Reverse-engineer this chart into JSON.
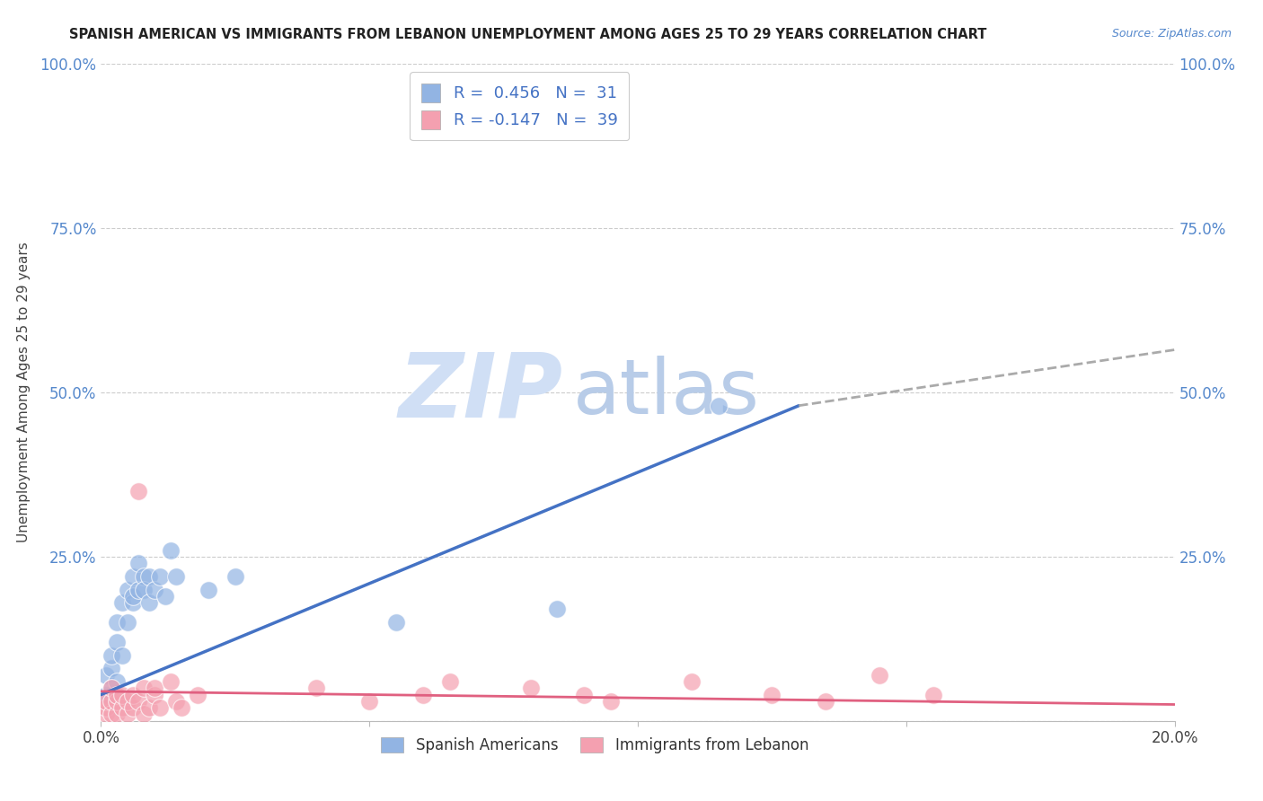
{
  "title": "SPANISH AMERICAN VS IMMIGRANTS FROM LEBANON UNEMPLOYMENT AMONG AGES 25 TO 29 YEARS CORRELATION CHART",
  "source": "Source: ZipAtlas.com",
  "ylabel": "Unemployment Among Ages 25 to 29 years",
  "xlim": [
    0.0,
    0.2
  ],
  "ylim": [
    0.0,
    1.0
  ],
  "spanish_color": "#92b4e3",
  "lebanon_color": "#f4a0b0",
  "blue_line_color": "#4472c4",
  "pink_line_color": "#e06080",
  "dashed_line_color": "#aaaaaa",
  "background_color": "#ffffff",
  "watermark_zip": "ZIP",
  "watermark_atlas": "atlas",
  "watermark_color_zip": "#d0dff5",
  "watermark_color_atlas": "#b8cce8",
  "legend_r1": "R =  0.456   N =  31",
  "legend_r2": "R = -0.147   N =  39",
  "legend_label1": "Spanish Americans",
  "legend_label2": "Immigrants from Lebanon",
  "spanish_x": [
    0.001,
    0.001,
    0.002,
    0.002,
    0.002,
    0.003,
    0.003,
    0.003,
    0.004,
    0.004,
    0.005,
    0.005,
    0.006,
    0.006,
    0.006,
    0.007,
    0.007,
    0.008,
    0.008,
    0.009,
    0.009,
    0.01,
    0.011,
    0.012,
    0.013,
    0.014,
    0.02,
    0.025,
    0.055,
    0.085,
    0.115
  ],
  "spanish_y": [
    0.04,
    0.07,
    0.05,
    0.08,
    0.1,
    0.06,
    0.12,
    0.15,
    0.1,
    0.18,
    0.15,
    0.2,
    0.18,
    0.22,
    0.19,
    0.2,
    0.24,
    0.22,
    0.2,
    0.18,
    0.22,
    0.2,
    0.22,
    0.19,
    0.26,
    0.22,
    0.2,
    0.22,
    0.15,
    0.17,
    0.48
  ],
  "lebanon_x": [
    0.001,
    0.001,
    0.001,
    0.002,
    0.002,
    0.002,
    0.003,
    0.003,
    0.003,
    0.004,
    0.004,
    0.005,
    0.005,
    0.006,
    0.006,
    0.007,
    0.007,
    0.008,
    0.008,
    0.009,
    0.01,
    0.01,
    0.011,
    0.013,
    0.014,
    0.015,
    0.018,
    0.04,
    0.05,
    0.06,
    0.065,
    0.08,
    0.09,
    0.095,
    0.11,
    0.125,
    0.135,
    0.145,
    0.155
  ],
  "lebanon_y": [
    0.01,
    0.02,
    0.03,
    0.01,
    0.03,
    0.05,
    0.01,
    0.03,
    0.04,
    0.02,
    0.04,
    0.01,
    0.03,
    0.02,
    0.04,
    0.35,
    0.03,
    0.01,
    0.05,
    0.02,
    0.04,
    0.05,
    0.02,
    0.06,
    0.03,
    0.02,
    0.04,
    0.05,
    0.03,
    0.04,
    0.06,
    0.05,
    0.04,
    0.03,
    0.06,
    0.04,
    0.03,
    0.07,
    0.04
  ],
  "blue_line_x": [
    0.0,
    0.13
  ],
  "blue_line_y": [
    0.04,
    0.48
  ],
  "dashed_line_x": [
    0.13,
    0.2
  ],
  "dashed_line_y": [
    0.48,
    0.565
  ],
  "pink_line_x": [
    0.0,
    0.2
  ],
  "pink_line_y": [
    0.045,
    0.025
  ],
  "ytick_right_labels": [
    "",
    "25.0%",
    "50.0%",
    "75.0%",
    "100.0%"
  ],
  "ytick_left_labels": [
    "",
    "25.0%",
    "50.0%",
    "75.0%",
    "100.0%"
  ],
  "xtick_labels": [
    "0.0%",
    "",
    "",
    "",
    "20.0%"
  ]
}
